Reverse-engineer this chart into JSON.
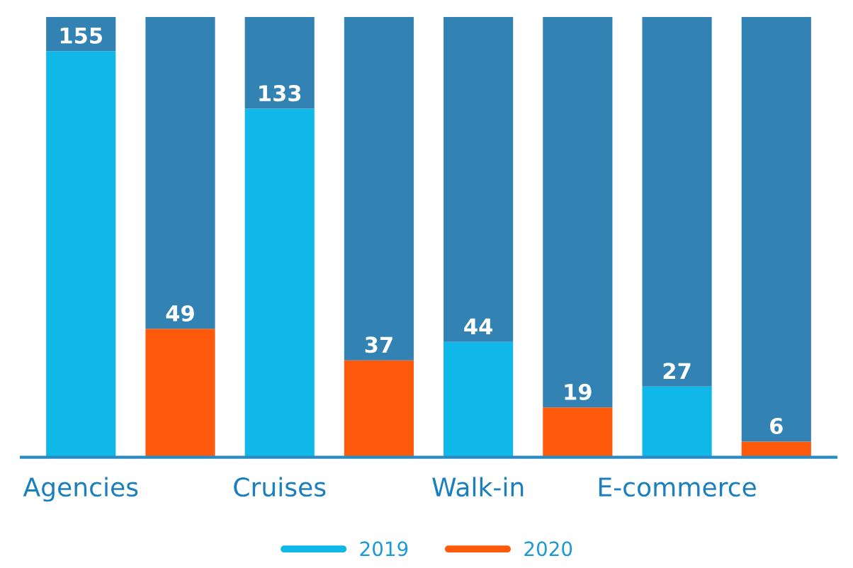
{
  "chart_data": {
    "type": "bar",
    "stacked": true,
    "categories": [
      "Agencies",
      null,
      "Cruises",
      null,
      "Walk-in",
      null,
      "E-commerce",
      null
    ],
    "series": [
      {
        "name": "2019",
        "color": "#10b8e8",
        "values": [
          155,
          null,
          133,
          null,
          44,
          null,
          27,
          null
        ],
        "value_labels": [
          "155",
          null,
          "133",
          null,
          "44",
          null,
          "27",
          null
        ]
      },
      {
        "name": "2020",
        "color": "#ff5a0c",
        "values": [
          null,
          49,
          null,
          37,
          null,
          19,
          null,
          6
        ],
        "value_labels": [
          null,
          "49",
          null,
          "37",
          null,
          "19",
          null,
          "6"
        ]
      },
      {
        "color": "#3283b4",
        "values": [
          13,
          119,
          35,
          131,
          124,
          149,
          141,
          162
        ]
      }
    ],
    "tick_labels": "x",
    "legend": "bottom",
    "grid": false
  }
}
